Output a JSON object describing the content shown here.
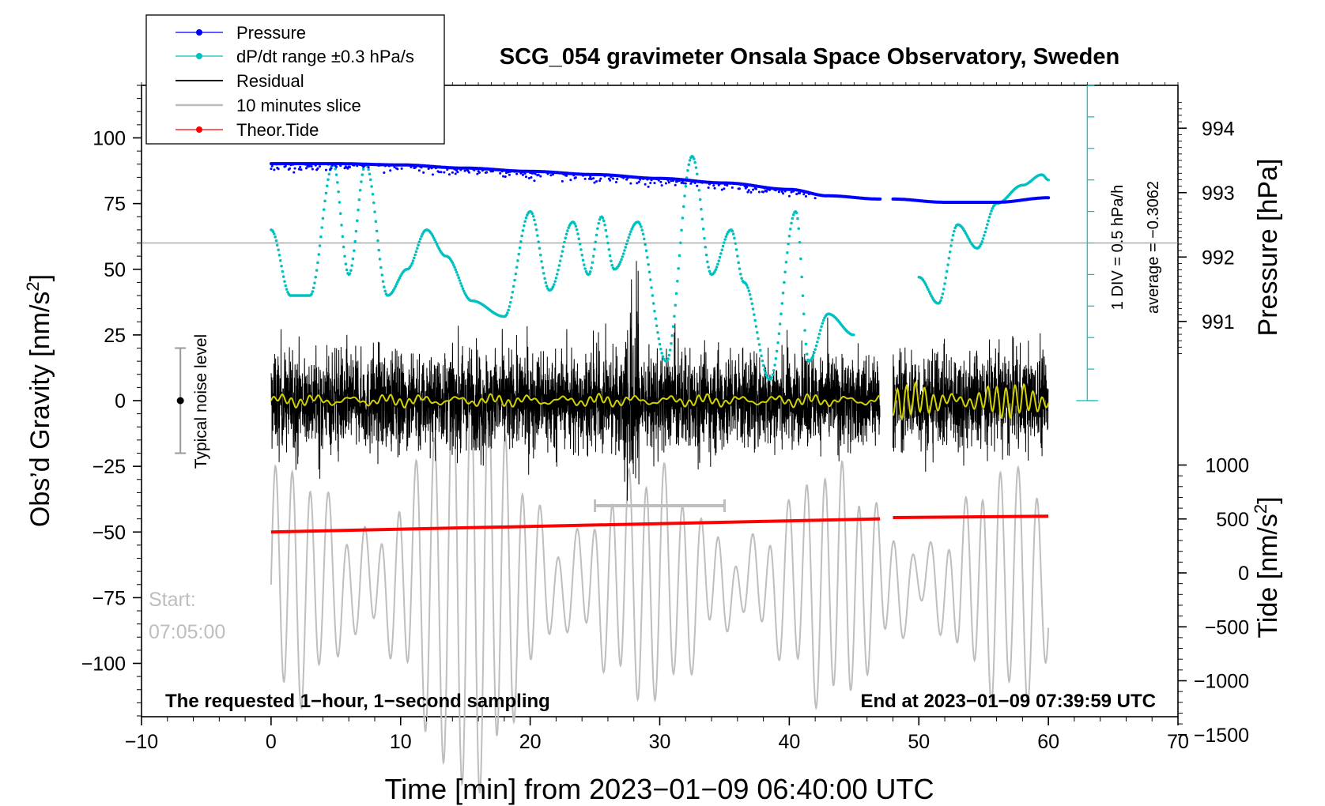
{
  "chart_data": {
    "type": "line",
    "title": "SCG_054 gravimeter Onsala Space Observatory, Sweden",
    "xlabel": "Time [min] from 2023−01−09 06:40:00 UTC",
    "ylabel_left": "Obs’d Gravity [nm/s²]",
    "ylabel_left_main": "Obs’d Gravity [nm/s",
    "ylabel_left_sup": "2",
    "ylabel_left_end": "]",
    "ylabel_right_pressure": "Pressure [hPa]",
    "ylabel_right_tide": "Tide [nm/s²]",
    "ylabel_right_tide_main": "Tide [nm/s",
    "ylabel_right_tide_sup": "2",
    "ylabel_right_tide_end": "]",
    "xlim": [
      -10,
      70
    ],
    "ylim_gravity": [
      -120,
      120
    ],
    "x_ticks": [
      -10,
      0,
      10,
      20,
      30,
      40,
      50,
      60,
      70
    ],
    "x_tick_labels": [
      "−10",
      "0",
      "10",
      "20",
      "30",
      "40",
      "50",
      "60",
      "70"
    ],
    "y_ticks": [
      100,
      75,
      50,
      25,
      0,
      -25,
      -50,
      -75,
      -100
    ],
    "y_tick_labels": [
      "100",
      "75",
      "50",
      "25",
      "0",
      "−25",
      "−50",
      "−75",
      "−100"
    ],
    "pressure_ticks": [
      994,
      993,
      992,
      991
    ],
    "pressure_tick_labels": [
      "994",
      "993",
      "992",
      "991"
    ],
    "tide_ticks": [
      1000,
      500,
      0,
      -500,
      -1000,
      -1500
    ],
    "tide_tick_labels": [
      "1000",
      "500",
      "0",
      "−500",
      "−1000",
      "−1500"
    ],
    "legend": [
      {
        "label": "Pressure",
        "color": "#0000ff",
        "style": "line-dot"
      },
      {
        "label": "dP/dt range ±0.3 hPa/s",
        "color": "#00c0c0",
        "style": "line-dot"
      },
      {
        "label": "Residual",
        "color": "#000000",
        "style": "line"
      },
      {
        "label": "10 minutes slice",
        "color": "#bebebe",
        "style": "line"
      },
      {
        "label": "Theor.Tide",
        "color": "#ff0000",
        "style": "line-dot"
      }
    ],
    "annotations": {
      "noise_label": "Typical noise level",
      "noise_range": [
        -20,
        20
      ],
      "start_label": "Start:",
      "start_time": "07:05:00",
      "slice_range": [
        25,
        35
      ],
      "slice_y": -40,
      "bottom_left": "The requested 1−hour, 1−second sampling",
      "bottom_right": "End at 2023−01−09 07:39:59 UTC",
      "div_label": "1 DIV = 0.5 hPa/h",
      "average_label": "average = −0.3062"
    },
    "series": [
      {
        "name": "Pressure",
        "unit": "hPa",
        "color": "#0000ff",
        "segments": [
          {
            "x": [
              0,
              5,
              10,
              15,
              20,
              25,
              30,
              35,
              40,
              43,
              47
            ],
            "y": [
              993.45,
              993.45,
              993.43,
              993.38,
              993.33,
              993.28,
              993.22,
              993.15,
              993.05,
              992.95,
              992.9
            ]
          },
          {
            "x": [
              48,
              52,
              56,
              60
            ],
            "y": [
              992.9,
              992.85,
              992.85,
              992.92
            ]
          }
        ]
      },
      {
        "name": "dP/dt range ±0.3 hPa/s",
        "unit": "gravity-axis",
        "color": "#00c0c0",
        "reference_y": 60,
        "segments": [
          {
            "x": [
              0,
              1.5,
              3,
              4.8,
              6,
              7.3,
              9,
              10.5,
              12,
              13.5,
              15.5,
              18,
              20,
              21.5,
              23.3,
              24.5,
              25.5,
              26.5,
              28.3,
              30.5,
              32.5,
              34,
              35.5,
              36.5,
              38.5,
              40.5,
              41.5,
              43,
              45
            ],
            "y": [
              65,
              40,
              40,
              90,
              48,
              90,
              40,
              50,
              65,
              55,
              38,
              32,
              72,
              42,
              68,
              48,
              70,
              50,
              68,
              15,
              93,
              48,
              65,
              45,
              8,
              72,
              15,
              33,
              25
            ]
          },
          {
            "x": [
              50,
              51.5,
              53,
              54.5,
              56,
              58,
              59.5,
              60
            ],
            "y": [
              47,
              37,
              67,
              58,
              75,
              82,
              86,
              84
            ]
          }
        ]
      },
      {
        "name": "Residual",
        "unit": "nm/s²",
        "color": "#000000",
        "typical_amplitude": 20,
        "peak": [
          27.8,
          58
        ]
      },
      {
        "name": "10 minutes slice",
        "unit": "nm/s²",
        "color": "#bebebe",
        "typical_amplitude": 30
      },
      {
        "name": "Theor.Tide",
        "unit": "gravity-axis",
        "color": "#ff0000",
        "segments": [
          {
            "x": [
              0,
              47
            ],
            "y": [
              -50,
              -45
            ]
          },
          {
            "x": [
              48,
              60
            ],
            "y": [
              -44.5,
              -44
            ]
          }
        ]
      }
    ]
  }
}
